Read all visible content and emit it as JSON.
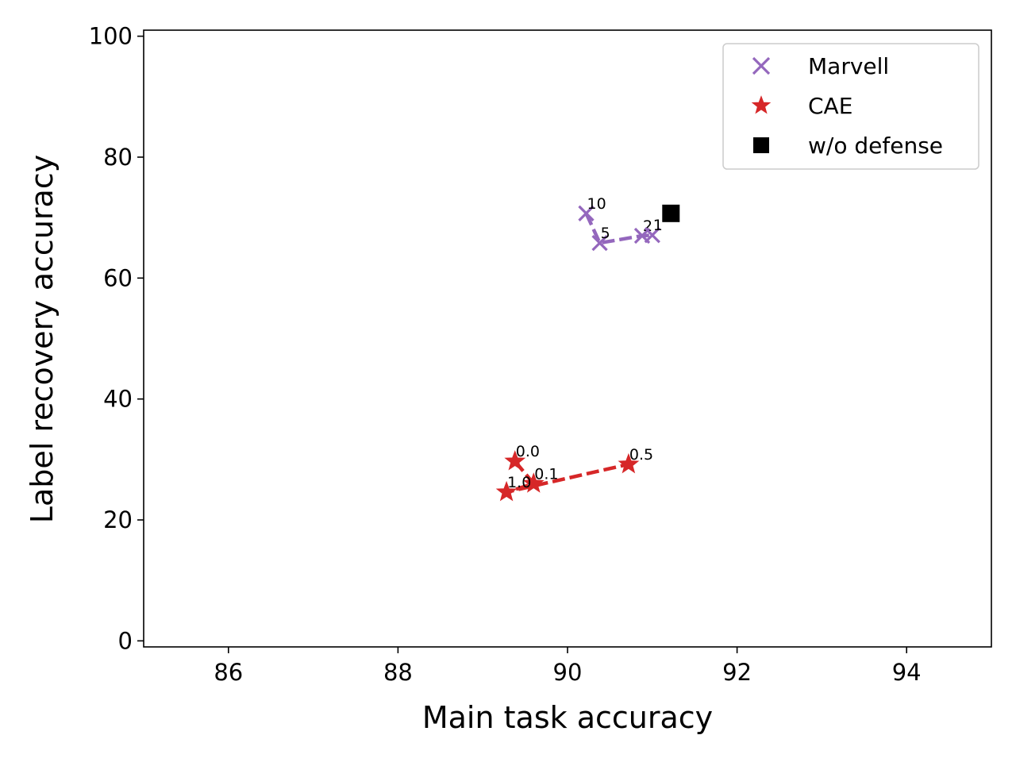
{
  "chart_data": {
    "type": "scatter",
    "title": "",
    "xlabel": "Main task accuracy",
    "ylabel": "Label recovery accuracy",
    "xlim": [
      85,
      95
    ],
    "ylim": [
      -1,
      101
    ],
    "xticks": [
      86,
      88,
      90,
      92,
      94
    ],
    "yticks": [
      0,
      20,
      40,
      60,
      80,
      100
    ],
    "grid": false,
    "legend_position": "top-right",
    "series": [
      {
        "name": "Marvell",
        "marker": "x",
        "color": "#9467bd",
        "line_style": "dashed",
        "points": [
          {
            "x": 90.22,
            "y": 70.7,
            "label": "10"
          },
          {
            "x": 90.38,
            "y": 65.8,
            "label": "5"
          },
          {
            "x": 90.88,
            "y": 67.0,
            "label": "2"
          },
          {
            "x": 91.0,
            "y": 67.1,
            "label": "1"
          }
        ]
      },
      {
        "name": "CAE",
        "marker": "star",
        "color": "#d62728",
        "line_style": "dashed",
        "points": [
          {
            "x": 89.38,
            "y": 29.7,
            "label": "0.0"
          },
          {
            "x": 89.6,
            "y": 26.0,
            "label": "0.1"
          },
          {
            "x": 89.28,
            "y": 24.6,
            "label": "1.0"
          },
          {
            "x": 90.72,
            "y": 29.2,
            "label": "0.5"
          }
        ]
      },
      {
        "name": "w/o defense",
        "marker": "square",
        "color": "#000000",
        "line_style": "none",
        "points": [
          {
            "x": 91.22,
            "y": 70.7,
            "label": ""
          }
        ]
      }
    ]
  }
}
